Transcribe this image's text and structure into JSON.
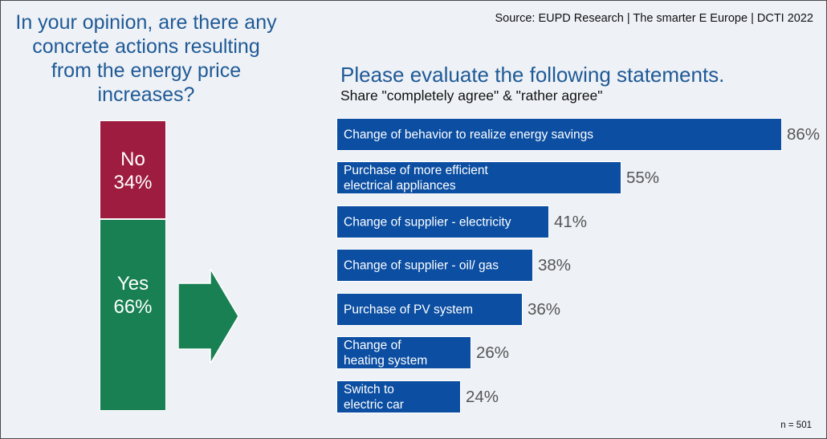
{
  "source": "Source: EUPD Research | The smarter E Europe | DCTI 2022",
  "note": "n = 501",
  "chart_data": [
    {
      "type": "bar",
      "orientation": "vertical-stacked",
      "title": "In your opinion, are there any concrete actions resulting from the energy price increases?",
      "categories": [
        "No",
        "Yes"
      ],
      "values": [
        34,
        66
      ],
      "value_labels": [
        "34%",
        "66%"
      ],
      "colors": [
        "#9e1c3f",
        "#188053"
      ]
    },
    {
      "type": "bar",
      "orientation": "horizontal",
      "title": "Please evaluate the following statements.",
      "subtitle": "Share \"completely agree\" & \"rather agree\"",
      "categories": [
        "Change of behavior to realize energy savings",
        "Purchase of more efficient\nelectrical appliances",
        "Change of supplier - electricity",
        "Change of supplier - oil/ gas",
        "Purchase of PV system",
        "Change of\nheating system",
        "Switch to\nelectric car"
      ],
      "values": [
        86,
        55,
        41,
        38,
        36,
        26,
        24
      ],
      "value_labels": [
        "86%",
        "55%",
        "41%",
        "38%",
        "36%",
        "26%",
        "24%"
      ],
      "color": "#0b4ea2"
    }
  ]
}
